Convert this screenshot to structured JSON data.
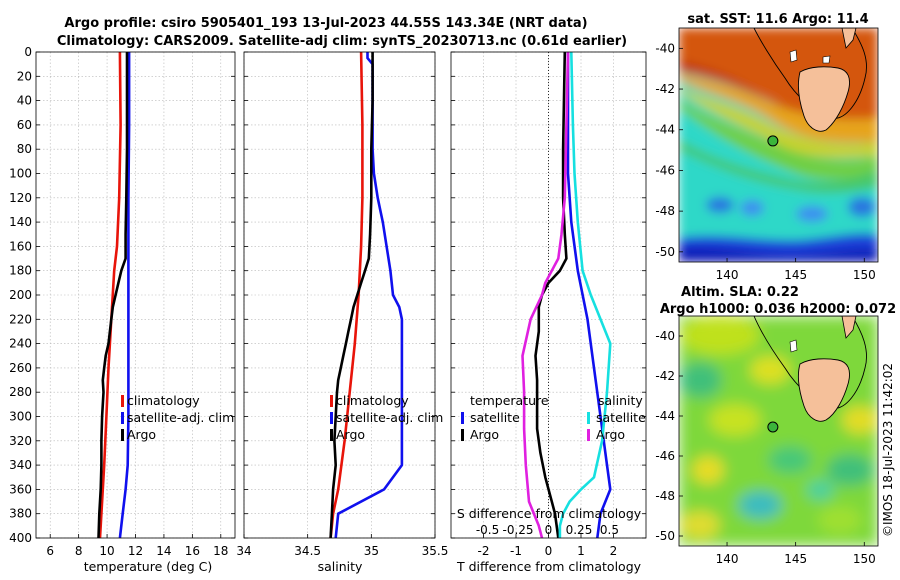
{
  "title": {
    "line1": "Argo profile: csiro 5905401_193 13-Jul-2023 44.55S 143.34E (NRT data)",
    "line2": "Climatology: CARS2009. Satellite-adj clim: synTS_20230713.nc (0.61d earlier)"
  },
  "depth_axis": {
    "ticks": [
      0,
      20,
      40,
      60,
      80,
      100,
      120,
      140,
      160,
      180,
      200,
      220,
      240,
      260,
      280,
      300,
      320,
      340,
      360,
      380,
      400
    ],
    "ylim": [
      0,
      400
    ]
  },
  "chart_data": [
    {
      "type": "line",
      "id": "temperature",
      "xlabel": "temperature (deg C)",
      "xlim": [
        5,
        19
      ],
      "xticks": [
        6,
        8,
        10,
        12,
        14,
        16,
        18
      ],
      "xtick_labels": [
        "6",
        "8",
        "10",
        "12",
        "14",
        "16",
        "18"
      ],
      "legend": [
        "climatology",
        "satellite-adj. clim",
        "Argo"
      ],
      "series": [
        {
          "name": "climatology",
          "color": "#e8140a",
          "depth": [
            0,
            60,
            120,
            160,
            180,
            220,
            260,
            300,
            340,
            380,
            400
          ],
          "values": [
            10.9,
            10.95,
            10.85,
            10.7,
            10.5,
            10.3,
            10.1,
            9.95,
            9.8,
            9.6,
            9.5
          ]
        },
        {
          "name": "satellite-adj. clim",
          "color": "#1010ee",
          "depth": [
            0,
            60,
            120,
            180,
            240,
            300,
            340,
            360,
            380,
            400
          ],
          "values": [
            11.55,
            11.55,
            11.5,
            11.5,
            11.5,
            11.5,
            11.45,
            11.3,
            11.1,
            10.9
          ]
        },
        {
          "name": "Argo",
          "color": "#000000",
          "depth": [
            0,
            40,
            80,
            120,
            150,
            170,
            180,
            190,
            200,
            210,
            220,
            230,
            240,
            250,
            260,
            270,
            280,
            300,
            320,
            340,
            360,
            380,
            400
          ],
          "values": [
            11.4,
            11.4,
            11.4,
            11.35,
            11.3,
            11.3,
            11.0,
            10.8,
            10.6,
            10.4,
            10.3,
            10.2,
            10.1,
            9.9,
            9.8,
            9.7,
            9.75,
            9.65,
            9.6,
            9.6,
            9.55,
            9.45,
            9.4
          ]
        }
      ]
    },
    {
      "type": "line",
      "id": "salinity",
      "xlabel": "salinity",
      "xlim": [
        34,
        35.5
      ],
      "xticks": [
        34,
        34.5,
        35,
        35.5
      ],
      "xtick_labels": [
        "34",
        "34.5",
        "35",
        "35.5"
      ],
      "legend": [
        "climatology",
        "satellite-adj. clim",
        "Argo"
      ],
      "series": [
        {
          "name": "climatology",
          "color": "#e8140a",
          "depth": [
            0,
            60,
            120,
            160,
            200,
            240,
            280,
            320,
            360,
            380,
            400
          ],
          "values": [
            34.92,
            34.93,
            34.93,
            34.92,
            34.9,
            34.87,
            34.83,
            34.79,
            34.74,
            34.7,
            34.68
          ]
        },
        {
          "name": "satellite-adj. clim",
          "color": "#1010ee",
          "depth": [
            0,
            5,
            10,
            20,
            40,
            80,
            100,
            120,
            140,
            160,
            180,
            200,
            210,
            220,
            240,
            260,
            280,
            300,
            320,
            340,
            360,
            380,
            400
          ],
          "values": [
            34.97,
            34.97,
            35.01,
            35.01,
            35.01,
            35.01,
            35.02,
            35.05,
            35.09,
            35.12,
            35.15,
            35.17,
            35.22,
            35.24,
            35.24,
            35.24,
            35.24,
            35.24,
            35.24,
            35.24,
            35.1,
            34.74,
            34.72
          ]
        },
        {
          "name": "Argo",
          "color": "#000000",
          "depth": [
            0,
            40,
            80,
            120,
            150,
            170,
            180,
            190,
            200,
            210,
            220,
            230,
            240,
            250,
            260,
            270,
            280,
            300,
            320,
            340,
            360,
            380,
            400
          ],
          "values": [
            35.01,
            35.01,
            35.0,
            35.0,
            34.99,
            34.98,
            34.95,
            34.92,
            34.89,
            34.86,
            34.84,
            34.82,
            34.8,
            34.78,
            34.76,
            34.74,
            34.73,
            34.72,
            34.71,
            34.72,
            34.7,
            34.69,
            34.68
          ]
        }
      ]
    },
    {
      "type": "line",
      "id": "difference",
      "xlabel": "T difference from climatology",
      "xlim": [
        -3,
        3
      ],
      "xticks": [
        -2,
        -1,
        0,
        1,
        2
      ],
      "xtick_labels": [
        "-2",
        "-1",
        "0",
        "1",
        "2"
      ],
      "top_axis_label": "S difference from climatology",
      "top_ticks": [
        -0.5,
        -0.25,
        0,
        0.25,
        0.5
      ],
      "top_tick_labels": [
        "-0.5",
        "-0.25",
        "0",
        "0.25",
        "0.5"
      ],
      "legend_left_heading": "temperature",
      "legend_right_heading": "salinity",
      "legend": [
        "satellite",
        "Argo",
        "satellite",
        "Argo"
      ],
      "series": [
        {
          "name": "temperature satellite",
          "color": "#1010ee",
          "depth": [
            0,
            100,
            140,
            180,
            220,
            260,
            300,
            340,
            360,
            380,
            400
          ],
          "values": [
            0.6,
            0.6,
            0.7,
            0.9,
            1.2,
            1.4,
            1.6,
            1.8,
            1.9,
            1.6,
            1.5
          ]
        },
        {
          "name": "temperature Argo",
          "color": "#000000",
          "depth": [
            0,
            80,
            120,
            150,
            170,
            180,
            190,
            200,
            210,
            230,
            250,
            270,
            290,
            310,
            330,
            350,
            370,
            380,
            400
          ],
          "values": [
            0.5,
            0.45,
            0.45,
            0.5,
            0.55,
            0.35,
            0.0,
            -0.2,
            -0.3,
            -0.3,
            -0.4,
            -0.35,
            -0.35,
            -0.35,
            -0.25,
            -0.1,
            0.1,
            0.2,
            0.3
          ]
        },
        {
          "name": "salinity satellite",
          "color": "#16e0e0",
          "depth": [
            0,
            60,
            100,
            140,
            180,
            200,
            240,
            280,
            320,
            350,
            360,
            370,
            380,
            390,
            400
          ],
          "values": [
            0.7,
            0.75,
            0.8,
            0.9,
            1.05,
            1.3,
            1.9,
            1.8,
            1.65,
            1.4,
            1.0,
            0.65,
            0.45,
            0.35,
            0.35
          ]
        },
        {
          "name": "salinity Argo",
          "color": "#e020e0",
          "depth": [
            0,
            60,
            120,
            150,
            170,
            180,
            190,
            200,
            220,
            250,
            280,
            310,
            340,
            370,
            390,
            400
          ],
          "values": [
            0.6,
            0.55,
            0.5,
            0.4,
            0.3,
            0.1,
            -0.1,
            -0.2,
            -0.55,
            -0.8,
            -0.75,
            -0.75,
            -0.7,
            -0.6,
            -0.3,
            -0.2
          ]
        }
      ]
    },
    {
      "type": "heatmap",
      "id": "sst_map",
      "title": "sat. SST: 11.6 Argo: 11.4",
      "xticks": [
        140,
        145,
        150
      ],
      "yticks": [
        -40,
        -42,
        -44,
        -46,
        -48,
        -50
      ],
      "ytick_labels": [
        "-40",
        "-42",
        "-44",
        "-46",
        "-48",
        "-50"
      ],
      "xlim": [
        136.5,
        151
      ],
      "ylim": [
        -50.5,
        -39
      ],
      "marker": {
        "lon": 143.34,
        "lat": -44.55,
        "color": "#3bb53b"
      }
    },
    {
      "type": "heatmap",
      "id": "sla_map",
      "title_line1": "Altim. SLA: 0.22",
      "title_line2": "Argo h1000: 0.036 h2000: 0.072",
      "xticks": [
        140,
        145,
        150
      ],
      "yticks": [
        -40,
        -42,
        -44,
        -46,
        -48,
        -50
      ],
      "ytick_labels": [
        "-40",
        "-42",
        "-44",
        "-46",
        "-48",
        "-50"
      ],
      "xlim": [
        136.5,
        151
      ],
      "ylim": [
        -50.5,
        -39
      ],
      "marker": {
        "lon": 143.34,
        "lat": -44.55,
        "color": "#3bb53b"
      }
    }
  ],
  "watermark": "©IMOS 18-Jul-2023 11:42:02"
}
